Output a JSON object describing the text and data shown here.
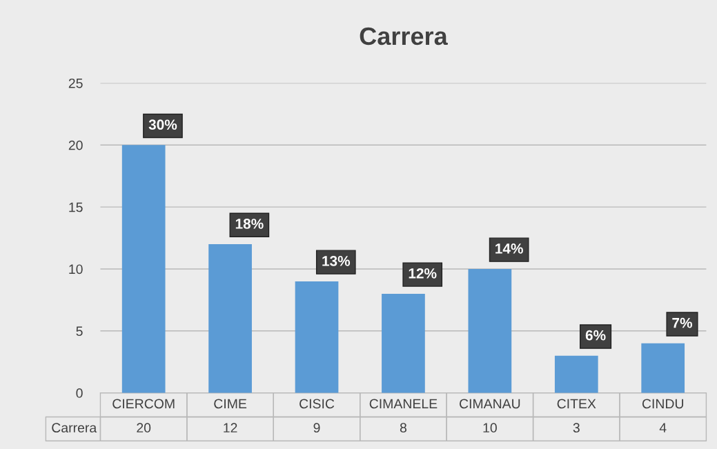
{
  "chart_data": {
    "type": "bar",
    "title": "Carrera",
    "categories": [
      "CIERCOM",
      "CIME",
      "CISIC",
      "CIMANELE",
      "CIMANAU",
      "CITEX",
      "CINDU"
    ],
    "series": [
      {
        "name": "Carrera",
        "color": "#5b9bd5",
        "values": [
          20,
          12,
          9,
          8,
          10,
          3,
          4
        ],
        "value_labels": [
          "20",
          "12",
          "9",
          "8",
          "10",
          "3",
          "4"
        ]
      }
    ],
    "annotations": [
      {
        "text": "30%",
        "x": "CIERCOM",
        "y": 20
      },
      {
        "text": "18%",
        "x": "CIME",
        "y": 12
      },
      {
        "text": "13%",
        "x": "CISIC",
        "y": 9
      },
      {
        "text": "12%",
        "x": "CIMANELE",
        "y": 8
      },
      {
        "text": "14%",
        "x": "CIMANAU",
        "y": 10
      },
      {
        "text": "6%",
        "x": "CITEX",
        "y": 3
      },
      {
        "text": "7%",
        "x": "CINDU",
        "y": 4
      }
    ],
    "ylim": [
      0,
      25
    ],
    "yticks": [
      0,
      5,
      10,
      15,
      20,
      25
    ],
    "grid": "y"
  }
}
